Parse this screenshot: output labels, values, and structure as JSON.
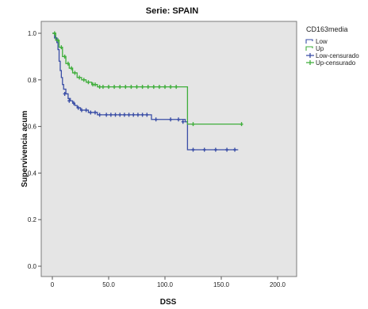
{
  "chart_data": {
    "type": "line",
    "title": "Serie: SPAIN",
    "xlabel": "DSS",
    "ylabel": "Supervivencia acum",
    "xlim": [
      0,
      200
    ],
    "ylim": [
      0,
      1.0
    ],
    "x_ticks": [
      0,
      50,
      100,
      150,
      200
    ],
    "x_tick_labels": [
      "0",
      "50.0",
      "100.0",
      "150.0",
      "200.0"
    ],
    "y_ticks": [
      0,
      0.2,
      0.4,
      0.6,
      0.8,
      1.0
    ],
    "y_tick_labels": [
      "0.0",
      "0.2",
      "0.4",
      "0.6",
      "0.8",
      "1.0"
    ],
    "grid": false,
    "legend": {
      "title": "CD163media",
      "placement": "right",
      "entries": [
        {
          "label": "Low",
          "marker": "line",
          "color": "#3a4ea6"
        },
        {
          "label": "Up",
          "marker": "line",
          "color": "#3fae3b"
        },
        {
          "label": "Low-censurado",
          "marker": "cross",
          "color": "#3a4ea6"
        },
        {
          "label": "Up-censurado",
          "marker": "cross",
          "color": "#3fae3b"
        }
      ]
    },
    "colors": {
      "plot_background": "#e5e5e5",
      "low": "#3a4ea6",
      "up": "#3fae3b"
    },
    "series": [
      {
        "name": "Low",
        "color": "#3a4ea6",
        "step_x": [
          0,
          2,
          4,
          5,
          6,
          7,
          8,
          9,
          10,
          12,
          14,
          16,
          18,
          20,
          22,
          25,
          28,
          32,
          36,
          40,
          45,
          88,
          100,
          118,
          120,
          165
        ],
        "step_y": [
          1.0,
          0.98,
          0.96,
          0.93,
          0.88,
          0.84,
          0.81,
          0.78,
          0.76,
          0.74,
          0.72,
          0.71,
          0.7,
          0.69,
          0.68,
          0.67,
          0.67,
          0.66,
          0.66,
          0.65,
          0.65,
          0.63,
          0.63,
          0.62,
          0.5,
          0.5
        ],
        "censored_x": [
          3,
          11,
          15,
          19,
          23,
          26,
          30,
          34,
          38,
          42,
          48,
          52,
          56,
          60,
          64,
          68,
          72,
          76,
          80,
          84,
          92,
          105,
          112,
          116,
          125,
          135,
          145,
          155,
          162
        ],
        "censored_y": [
          0.98,
          0.74,
          0.71,
          0.7,
          0.68,
          0.67,
          0.67,
          0.66,
          0.66,
          0.65,
          0.65,
          0.65,
          0.65,
          0.65,
          0.65,
          0.65,
          0.65,
          0.65,
          0.65,
          0.65,
          0.63,
          0.63,
          0.63,
          0.62,
          0.5,
          0.5,
          0.5,
          0.5,
          0.5
        ]
      },
      {
        "name": "Up",
        "color": "#3fae3b",
        "step_x": [
          0,
          3,
          6,
          9,
          12,
          15,
          18,
          22,
          26,
          30,
          35,
          40,
          120,
          168
        ],
        "step_y": [
          1.0,
          0.97,
          0.94,
          0.9,
          0.87,
          0.85,
          0.83,
          0.81,
          0.8,
          0.79,
          0.78,
          0.77,
          0.61,
          0.61
        ],
        "censored_x": [
          2,
          5,
          8,
          11,
          14,
          17,
          20,
          24,
          28,
          32,
          36,
          38,
          42,
          45,
          50,
          55,
          60,
          65,
          70,
          75,
          80,
          85,
          90,
          95,
          100,
          105,
          110,
          125,
          168
        ],
        "censored_y": [
          1.0,
          0.97,
          0.94,
          0.9,
          0.87,
          0.85,
          0.83,
          0.81,
          0.8,
          0.79,
          0.78,
          0.78,
          0.77,
          0.77,
          0.77,
          0.77,
          0.77,
          0.77,
          0.77,
          0.77,
          0.77,
          0.77,
          0.77,
          0.77,
          0.77,
          0.77,
          0.77,
          0.61,
          0.61
        ]
      }
    ]
  }
}
